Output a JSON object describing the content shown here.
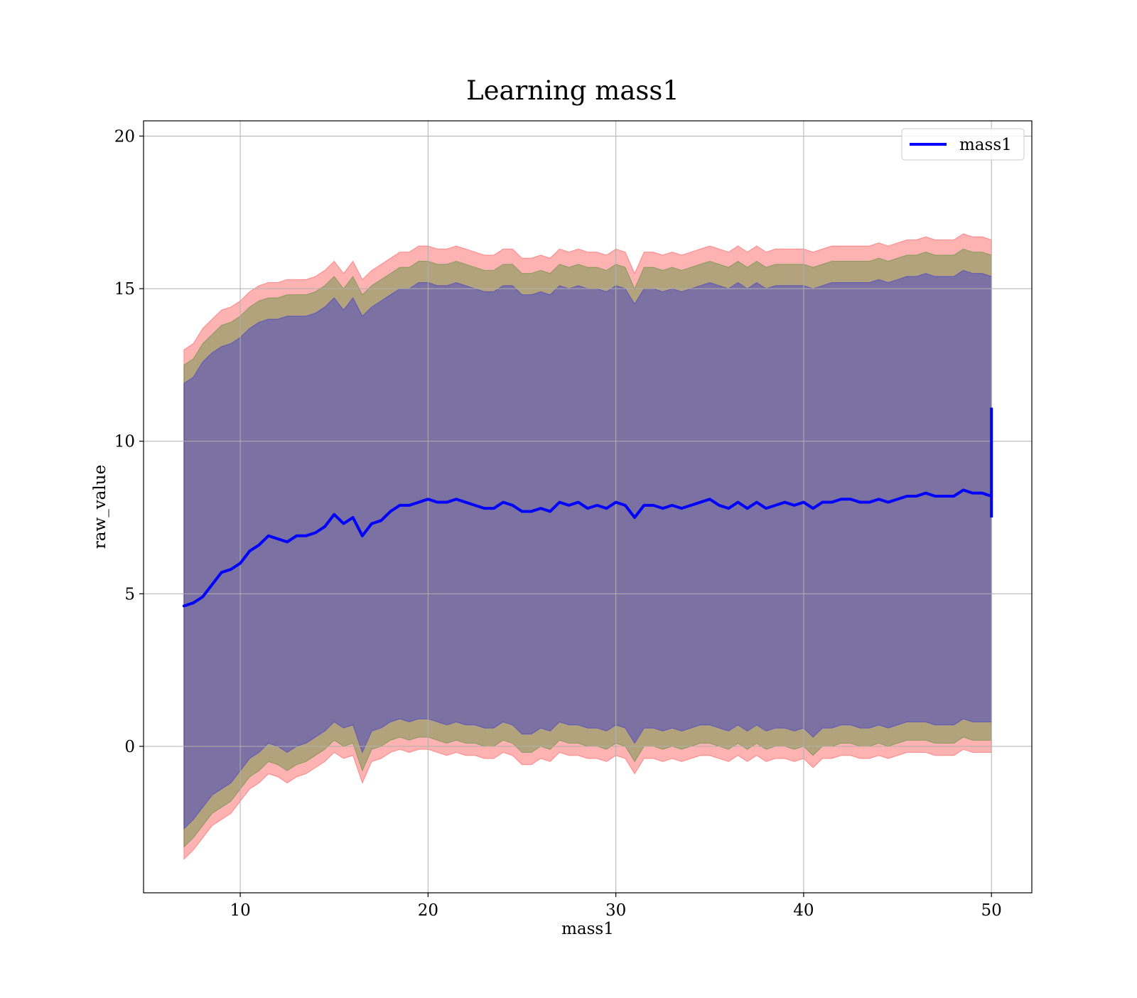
{
  "chart_data": {
    "type": "line",
    "title": "Learning mass1",
    "xlabel": "mass1",
    "ylabel": "raw_value",
    "xlim": [
      4.85,
      52.15
    ],
    "ylim": [
      -4.8,
      20.5
    ],
    "x_ticks": [
      10,
      20,
      30,
      40,
      50
    ],
    "y_ticks": [
      0,
      5,
      10,
      15,
      20
    ],
    "x_tick_labels": [
      "10",
      "20",
      "30",
      "40",
      "50"
    ],
    "y_tick_labels": [
      "0",
      "5",
      "10",
      "15",
      "20"
    ],
    "grid": true,
    "legend_position": "top-right",
    "series": [
      {
        "name": "mass1",
        "color": "#0000ff",
        "x": [
          7.0,
          7.5,
          8.0,
          8.5,
          9.0,
          9.5,
          10.0,
          10.5,
          11.0,
          11.5,
          12.0,
          12.5,
          13.0,
          13.5,
          14.0,
          14.5,
          15.0,
          15.5,
          16.0,
          16.5,
          17.0,
          17.5,
          18.0,
          18.5,
          19.0,
          19.5,
          20.0,
          20.5,
          21.0,
          21.5,
          22.0,
          22.5,
          23.0,
          23.5,
          24.0,
          24.5,
          25.0,
          25.5,
          26.0,
          26.5,
          27.0,
          27.5,
          28.0,
          28.5,
          29.0,
          29.5,
          30.0,
          30.5,
          31.0,
          31.5,
          32.0,
          32.5,
          33.0,
          33.5,
          34.0,
          34.5,
          35.0,
          35.5,
          36.0,
          36.5,
          37.0,
          37.5,
          38.0,
          38.5,
          39.0,
          39.5,
          40.0,
          40.5,
          41.0,
          41.5,
          42.0,
          42.5,
          43.0,
          43.5,
          44.0,
          44.5,
          45.0,
          45.5,
          46.0,
          46.5,
          47.0,
          47.5,
          48.0,
          48.5,
          49.0,
          49.5,
          50.0
        ],
        "values": [
          4.6,
          4.7,
          4.9,
          5.3,
          5.7,
          5.8,
          6.0,
          6.4,
          6.6,
          6.9,
          6.8,
          6.7,
          6.9,
          6.9,
          7.0,
          7.2,
          7.6,
          7.3,
          7.5,
          6.9,
          7.3,
          7.4,
          7.7,
          7.9,
          7.9,
          8.0,
          8.1,
          8.0,
          8.0,
          8.1,
          8.0,
          7.9,
          7.8,
          7.8,
          8.0,
          7.9,
          7.7,
          7.7,
          7.8,
          7.7,
          8.0,
          7.9,
          8.0,
          7.8,
          7.9,
          7.8,
          8.0,
          7.9,
          7.5,
          7.9,
          7.9,
          7.8,
          7.9,
          7.8,
          7.9,
          8.0,
          8.1,
          7.9,
          7.8,
          8.0,
          7.8,
          8.0,
          7.8,
          7.9,
          8.0,
          7.9,
          8.0,
          7.8,
          8.0,
          8.0,
          8.1,
          8.1,
          8.0,
          8.0,
          8.1,
          8.0,
          8.1,
          8.2,
          8.2,
          8.3,
          8.2,
          8.2,
          8.2,
          8.4,
          8.3,
          8.3,
          8.2
        ],
        "final_vertical_segment": {
          "x": 50.0,
          "from": 7.5,
          "to": 11.1
        }
      }
    ],
    "bands": [
      {
        "color": "#ff0000",
        "opacity": 0.3,
        "x": [
          7.0,
          7.5,
          8.0,
          8.5,
          9.0,
          9.5,
          10.0,
          10.5,
          11.0,
          11.5,
          12.0,
          12.5,
          13.0,
          13.5,
          14.0,
          14.5,
          15.0,
          15.5,
          16.0,
          16.5,
          17.0,
          17.5,
          18.0,
          18.5,
          19.0,
          19.5,
          20.0,
          20.5,
          21.0,
          21.5,
          22.0,
          22.5,
          23.0,
          23.5,
          24.0,
          24.5,
          25.0,
          25.5,
          26.0,
          26.5,
          27.0,
          27.5,
          28.0,
          28.5,
          29.0,
          29.5,
          30.0,
          30.5,
          31.0,
          31.5,
          32.0,
          32.5,
          33.0,
          33.5,
          34.0,
          34.5,
          35.0,
          35.5,
          36.0,
          36.5,
          37.0,
          37.5,
          38.0,
          38.5,
          39.0,
          39.5,
          40.0,
          40.5,
          41.0,
          41.5,
          42.0,
          42.5,
          43.0,
          43.5,
          44.0,
          44.5,
          45.0,
          45.5,
          46.0,
          46.5,
          47.0,
          47.5,
          48.0,
          48.5,
          49.0,
          49.5,
          50.0
        ],
        "upper": [
          13.0,
          13.2,
          13.7,
          14.0,
          14.3,
          14.4,
          14.6,
          14.9,
          15.1,
          15.2,
          15.2,
          15.3,
          15.3,
          15.3,
          15.4,
          15.6,
          15.9,
          15.5,
          15.9,
          15.3,
          15.6,
          15.8,
          16.0,
          16.2,
          16.2,
          16.4,
          16.4,
          16.3,
          16.3,
          16.4,
          16.3,
          16.2,
          16.1,
          16.1,
          16.3,
          16.3,
          16.0,
          16.0,
          16.1,
          16.0,
          16.3,
          16.2,
          16.3,
          16.2,
          16.2,
          16.1,
          16.3,
          16.2,
          15.5,
          16.2,
          16.2,
          16.1,
          16.2,
          16.1,
          16.2,
          16.3,
          16.4,
          16.3,
          16.2,
          16.4,
          16.2,
          16.4,
          16.2,
          16.3,
          16.3,
          16.3,
          16.3,
          16.2,
          16.3,
          16.4,
          16.4,
          16.4,
          16.4,
          16.4,
          16.5,
          16.4,
          16.5,
          16.6,
          16.6,
          16.7,
          16.6,
          16.6,
          16.6,
          16.8,
          16.7,
          16.7,
          16.6
        ],
        "lower": [
          -3.7,
          -3.4,
          -3.0,
          -2.6,
          -2.4,
          -2.2,
          -1.8,
          -1.4,
          -1.2,
          -0.9,
          -1.0,
          -1.2,
          -1.0,
          -0.9,
          -0.7,
          -0.5,
          -0.2,
          -0.4,
          -0.3,
          -1.2,
          -0.5,
          -0.4,
          -0.2,
          -0.1,
          -0.2,
          -0.1,
          -0.1,
          -0.2,
          -0.3,
          -0.2,
          -0.3,
          -0.3,
          -0.4,
          -0.4,
          -0.2,
          -0.3,
          -0.6,
          -0.6,
          -0.4,
          -0.5,
          -0.2,
          -0.3,
          -0.3,
          -0.4,
          -0.4,
          -0.5,
          -0.3,
          -0.4,
          -0.9,
          -0.4,
          -0.4,
          -0.5,
          -0.4,
          -0.5,
          -0.4,
          -0.3,
          -0.3,
          -0.4,
          -0.5,
          -0.3,
          -0.5,
          -0.3,
          -0.5,
          -0.4,
          -0.4,
          -0.5,
          -0.4,
          -0.7,
          -0.4,
          -0.4,
          -0.3,
          -0.3,
          -0.4,
          -0.4,
          -0.3,
          -0.4,
          -0.3,
          -0.2,
          -0.2,
          -0.2,
          -0.3,
          -0.3,
          -0.3,
          -0.1,
          -0.2,
          -0.2,
          -0.2
        ]
      },
      {
        "color": "#008000",
        "opacity": 0.3,
        "x": [
          7.0,
          7.5,
          8.0,
          8.5,
          9.0,
          9.5,
          10.0,
          10.5,
          11.0,
          11.5,
          12.0,
          12.5,
          13.0,
          13.5,
          14.0,
          14.5,
          15.0,
          15.5,
          16.0,
          16.5,
          17.0,
          17.5,
          18.0,
          18.5,
          19.0,
          19.5,
          20.0,
          20.5,
          21.0,
          21.5,
          22.0,
          22.5,
          23.0,
          23.5,
          24.0,
          24.5,
          25.0,
          25.5,
          26.0,
          26.5,
          27.0,
          27.5,
          28.0,
          28.5,
          29.0,
          29.5,
          30.0,
          30.5,
          31.0,
          31.5,
          32.0,
          32.5,
          33.0,
          33.5,
          34.0,
          34.5,
          35.0,
          35.5,
          36.0,
          36.5,
          37.0,
          37.5,
          38.0,
          38.5,
          39.0,
          39.5,
          40.0,
          40.5,
          41.0,
          41.5,
          42.0,
          42.5,
          43.0,
          43.5,
          44.0,
          44.5,
          45.0,
          45.5,
          46.0,
          46.5,
          47.0,
          47.5,
          48.0,
          48.5,
          49.0,
          49.5,
          50.0
        ],
        "upper": [
          12.5,
          12.7,
          13.2,
          13.5,
          13.8,
          13.9,
          14.1,
          14.4,
          14.6,
          14.7,
          14.7,
          14.8,
          14.8,
          14.8,
          14.9,
          15.1,
          15.4,
          15.0,
          15.4,
          14.8,
          15.1,
          15.3,
          15.5,
          15.7,
          15.7,
          15.9,
          15.9,
          15.8,
          15.8,
          15.9,
          15.8,
          15.7,
          15.6,
          15.6,
          15.8,
          15.8,
          15.5,
          15.5,
          15.6,
          15.5,
          15.8,
          15.7,
          15.8,
          15.7,
          15.7,
          15.6,
          15.8,
          15.7,
          15.0,
          15.7,
          15.7,
          15.6,
          15.7,
          15.6,
          15.7,
          15.8,
          15.9,
          15.8,
          15.7,
          15.9,
          15.7,
          15.9,
          15.7,
          15.8,
          15.8,
          15.8,
          15.8,
          15.7,
          15.8,
          15.9,
          15.9,
          15.9,
          15.9,
          15.9,
          16.0,
          15.9,
          16.0,
          16.1,
          16.1,
          16.2,
          16.1,
          16.1,
          16.1,
          16.3,
          16.2,
          16.2,
          16.1
        ],
        "lower": [
          -3.3,
          -3.0,
          -2.6,
          -2.2,
          -2.0,
          -1.8,
          -1.4,
          -1.0,
          -0.8,
          -0.5,
          -0.6,
          -0.8,
          -0.6,
          -0.5,
          -0.3,
          -0.1,
          0.2,
          0.0,
          0.1,
          -0.8,
          -0.1,
          0.0,
          0.2,
          0.3,
          0.2,
          0.3,
          0.3,
          0.2,
          0.1,
          0.2,
          0.1,
          0.1,
          0.0,
          0.0,
          0.2,
          0.1,
          -0.2,
          -0.2,
          0.0,
          -0.1,
          0.2,
          0.1,
          0.1,
          0.0,
          0.0,
          -0.1,
          0.1,
          0.0,
          -0.5,
          0.0,
          0.0,
          -0.1,
          0.0,
          -0.1,
          0.0,
          0.1,
          0.1,
          0.0,
          -0.1,
          0.1,
          -0.1,
          0.1,
          -0.1,
          0.0,
          0.0,
          -0.1,
          0.0,
          -0.3,
          0.0,
          0.0,
          0.1,
          0.1,
          0.0,
          0.0,
          0.1,
          0.0,
          0.1,
          0.2,
          0.2,
          0.2,
          0.1,
          0.1,
          0.1,
          0.3,
          0.2,
          0.2,
          0.2
        ]
      },
      {
        "color": "#0000ff",
        "opacity": 0.3,
        "x": [
          7.0,
          7.5,
          8.0,
          8.5,
          9.0,
          9.5,
          10.0,
          10.5,
          11.0,
          11.5,
          12.0,
          12.5,
          13.0,
          13.5,
          14.0,
          14.5,
          15.0,
          15.5,
          16.0,
          16.5,
          17.0,
          17.5,
          18.0,
          18.5,
          19.0,
          19.5,
          20.0,
          20.5,
          21.0,
          21.5,
          22.0,
          22.5,
          23.0,
          23.5,
          24.0,
          24.5,
          25.0,
          25.5,
          26.0,
          26.5,
          27.0,
          27.5,
          28.0,
          28.5,
          29.0,
          29.5,
          30.0,
          30.5,
          31.0,
          31.5,
          32.0,
          32.5,
          33.0,
          33.5,
          34.0,
          34.5,
          35.0,
          35.5,
          36.0,
          36.5,
          37.0,
          37.5,
          38.0,
          38.5,
          39.0,
          39.5,
          40.0,
          40.5,
          41.0,
          41.5,
          42.0,
          42.5,
          43.0,
          43.5,
          44.0,
          44.5,
          45.0,
          45.5,
          46.0,
          46.5,
          47.0,
          47.5,
          48.0,
          48.5,
          49.0,
          49.5,
          50.0
        ],
        "upper": [
          11.9,
          12.1,
          12.6,
          12.9,
          13.1,
          13.2,
          13.4,
          13.7,
          13.9,
          14.0,
          14.0,
          14.1,
          14.1,
          14.1,
          14.2,
          14.4,
          14.7,
          14.3,
          14.7,
          14.1,
          14.4,
          14.6,
          14.8,
          15.0,
          15.0,
          15.2,
          15.2,
          15.1,
          15.1,
          15.2,
          15.1,
          15.0,
          14.9,
          14.9,
          15.1,
          15.1,
          14.8,
          14.8,
          14.9,
          14.8,
          15.1,
          15.0,
          15.1,
          15.0,
          15.0,
          14.9,
          15.1,
          15.0,
          14.5,
          15.0,
          15.0,
          14.9,
          15.0,
          14.9,
          15.0,
          15.1,
          15.2,
          15.1,
          15.0,
          15.2,
          15.0,
          15.2,
          15.0,
          15.1,
          15.1,
          15.1,
          15.1,
          15.0,
          15.1,
          15.2,
          15.2,
          15.2,
          15.2,
          15.2,
          15.3,
          15.2,
          15.3,
          15.4,
          15.4,
          15.5,
          15.4,
          15.4,
          15.4,
          15.6,
          15.5,
          15.5,
          15.4
        ],
        "lower": [
          -2.7,
          -2.4,
          -2.0,
          -1.6,
          -1.4,
          -1.2,
          -0.8,
          -0.4,
          -0.2,
          0.1,
          0.0,
          -0.2,
          0.0,
          0.1,
          0.3,
          0.5,
          0.8,
          0.6,
          0.7,
          -0.2,
          0.5,
          0.6,
          0.8,
          0.9,
          0.8,
          0.9,
          0.9,
          0.8,
          0.7,
          0.8,
          0.7,
          0.7,
          0.6,
          0.6,
          0.8,
          0.7,
          0.4,
          0.4,
          0.6,
          0.5,
          0.8,
          0.7,
          0.7,
          0.6,
          0.6,
          0.5,
          0.7,
          0.6,
          0.1,
          0.6,
          0.6,
          0.5,
          0.6,
          0.5,
          0.6,
          0.7,
          0.7,
          0.6,
          0.5,
          0.7,
          0.5,
          0.7,
          0.5,
          0.6,
          0.6,
          0.5,
          0.6,
          0.3,
          0.6,
          0.6,
          0.7,
          0.7,
          0.6,
          0.6,
          0.7,
          0.6,
          0.7,
          0.8,
          0.8,
          0.8,
          0.7,
          0.7,
          0.7,
          0.9,
          0.8,
          0.8,
          0.8
        ]
      }
    ]
  }
}
